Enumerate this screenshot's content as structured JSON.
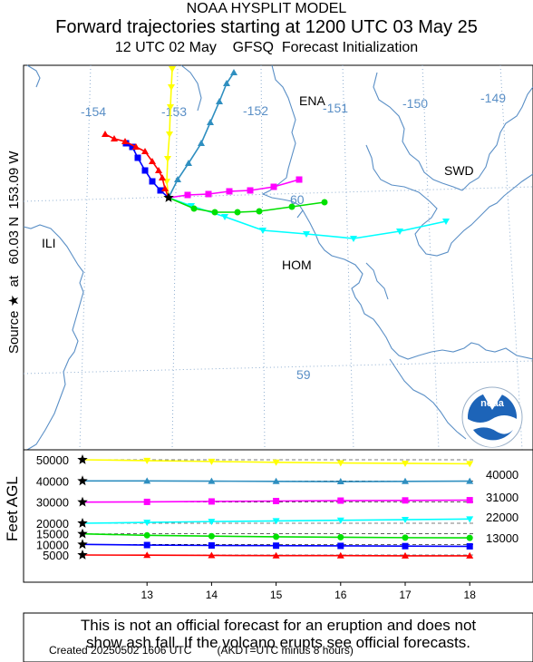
{
  "header": {
    "line1": "NOAA HYSPLIT MODEL",
    "line2": "Forward trajectories starting at 1200 UTC 03 May 25",
    "line3": "12 UTC 02 May    GFSQ  Forecast Initialization"
  },
  "source_label": "Source ★  at   60.03 N  153.09 W",
  "height_axis_label": "Feet AGL",
  "map": {
    "place_labels": [
      "ENA",
      "SWD",
      "ILI",
      "HOM"
    ],
    "longitude_labels": [
      "-154",
      "-153",
      "-152",
      "-151",
      "-150",
      "-149"
    ],
    "latitude_labels": [
      "60",
      "59"
    ],
    "logo_text": "noaa"
  },
  "chart_data": {
    "type": "line",
    "x": [
      12,
      13,
      14,
      15,
      16,
      17,
      18
    ],
    "x_tick_labels": [
      "13",
      "14",
      "15",
      "16",
      "17",
      "18"
    ],
    "xlabel": "",
    "ylabel": "Feet AGL",
    "y_tick_labels": [
      "50000",
      "40000",
      "30000",
      "20000",
      "15000",
      "10000",
      "5000"
    ],
    "ylim": [
      0,
      52000
    ],
    "right_labels": [
      "40000",
      "31000",
      "22000",
      "13000"
    ],
    "series": [
      {
        "color": "#ffff00",
        "marker": "triangle-down",
        "values": [
          50000,
          49600,
          49200,
          48800,
          48500,
          48300,
          48100
        ]
      },
      {
        "color": "#2f8fc0",
        "marker": "triangle-up",
        "values": [
          40000,
          40000,
          39900,
          39800,
          39700,
          39800,
          39900
        ]
      },
      {
        "color": "#ff00ff",
        "marker": "square",
        "values": [
          30000,
          30100,
          30300,
          30500,
          30700,
          30800,
          30900
        ]
      },
      {
        "color": "#00ffff",
        "marker": "triangle-down",
        "values": [
          20000,
          20400,
          20800,
          21100,
          21400,
          21700,
          22000
        ]
      },
      {
        "color": "#00e000",
        "marker": "circle",
        "values": [
          15000,
          14300,
          13900,
          13600,
          13400,
          13200,
          13100
        ]
      },
      {
        "color": "#0000ff",
        "marker": "square",
        "values": [
          10000,
          9700,
          9500,
          9400,
          9300,
          9200,
          9100
        ]
      },
      {
        "color": "#ff0000",
        "marker": "triangle-up",
        "values": [
          5000,
          4900,
          4800,
          4700,
          4700,
          4600,
          4600
        ]
      }
    ]
  },
  "footer": {
    "note": "This is not an official forecast for an eruption and does not\nshow ash fall. If the volcano erupts see official forecasts.",
    "created": "Created 20250502 1606 UTC",
    "tz_note": "(AKDT=UTC minus 8 hours)"
  }
}
